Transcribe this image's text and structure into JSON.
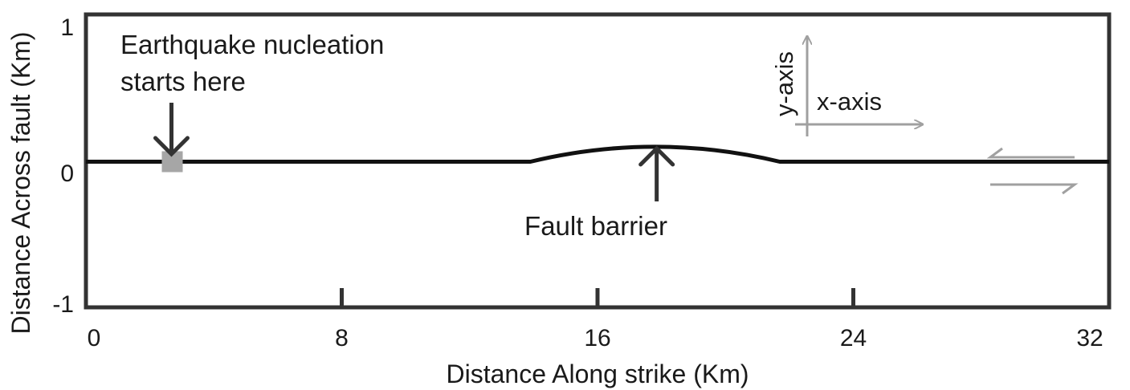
{
  "chart_data": {
    "type": "diagram",
    "title": "",
    "xlabel": "Distance Along strike (Km)",
    "ylabel": "Distance Across fault (Km)",
    "xlim": [
      0,
      32
    ],
    "ylim": [
      -1,
      1
    ],
    "x_ticks": [
      {
        "value": 0,
        "label": "0"
      },
      {
        "value": 8,
        "label": "8"
      },
      {
        "value": 16,
        "label": "16"
      },
      {
        "value": 24,
        "label": "24"
      },
      {
        "value": 32,
        "label": "32"
      }
    ],
    "y_ticks": [
      {
        "value": 1,
        "label": "1"
      },
      {
        "value": 0,
        "label": "0"
      },
      {
        "value": -1,
        "label": "-1"
      }
    ],
    "fault_line_y": 0,
    "barrier": {
      "start_x": 13.9,
      "end_x": 21.7,
      "peak_y": 0.23,
      "label": "Fault barrier"
    },
    "nucleation": {
      "x": 2.7,
      "y": 0,
      "label_line1": "Earthquake nucleation",
      "label_line2": "starts here"
    },
    "compass": {
      "x_label": "x-axis",
      "y_label": "y-axis"
    },
    "colors": {
      "frame": "#333333",
      "fault": "#111111",
      "marker": "#a6a6a6",
      "compass": "#a0a0a0",
      "arrow": "#333333"
    }
  }
}
